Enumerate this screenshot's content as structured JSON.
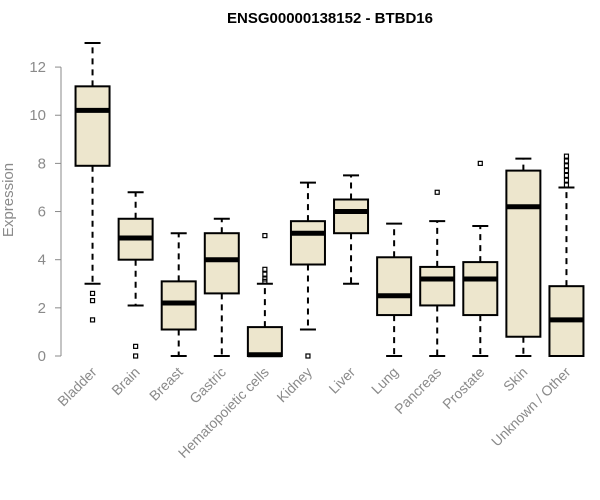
{
  "chart_data": {
    "type": "box",
    "title": "ENSG00000138152 - BTBD16",
    "xlabel": "",
    "ylabel": "Expression",
    "ylim": [
      0,
      13.2
    ],
    "yticks": [
      0,
      2,
      4,
      6,
      8,
      10,
      12
    ],
    "grid": false,
    "categories": [
      "Bladder",
      "Brain",
      "Breast",
      "Gastric",
      "Hematopoietic cells",
      "Kidney",
      "Liver",
      "Lung",
      "Pancreas",
      "Prostate",
      "Skin",
      "Unknown / Other"
    ],
    "boxes": [
      {
        "whisker_low": 3.0,
        "q1": 7.9,
        "median": 10.2,
        "q3": 11.2,
        "whisker_high": 13.0,
        "outliers": [
          2.6,
          2.3,
          1.5
        ]
      },
      {
        "whisker_low": 2.1,
        "q1": 4.0,
        "median": 4.9,
        "q3": 5.7,
        "whisker_high": 6.8,
        "outliers": [
          0.4,
          0.0
        ]
      },
      {
        "whisker_low": 0.0,
        "q1": 1.1,
        "median": 2.2,
        "q3": 3.1,
        "whisker_high": 5.1,
        "outliers": []
      },
      {
        "whisker_low": 0.0,
        "q1": 2.6,
        "median": 4.0,
        "q3": 5.1,
        "whisker_high": 5.7,
        "outliers": []
      },
      {
        "whisker_low": 0.0,
        "q1": 0.0,
        "median": 0.05,
        "q3": 1.2,
        "whisker_high": 3.0,
        "outliers": [
          5.0,
          3.6,
          3.4,
          3.2,
          3.1
        ]
      },
      {
        "whisker_low": 1.1,
        "q1": 3.8,
        "median": 5.1,
        "q3": 5.6,
        "whisker_high": 7.2,
        "outliers": [
          0.0
        ]
      },
      {
        "whisker_low": 3.0,
        "q1": 5.1,
        "median": 6.0,
        "q3": 6.5,
        "whisker_high": 7.5,
        "outliers": []
      },
      {
        "whisker_low": 0.0,
        "q1": 1.7,
        "median": 2.5,
        "q3": 4.1,
        "whisker_high": 5.5,
        "outliers": []
      },
      {
        "whisker_low": 0.0,
        "q1": 2.1,
        "median": 3.2,
        "q3": 3.7,
        "whisker_high": 5.6,
        "outliers": [
          6.8
        ]
      },
      {
        "whisker_low": 0.0,
        "q1": 1.7,
        "median": 3.2,
        "q3": 3.9,
        "whisker_high": 5.4,
        "outliers": [
          8.0
        ]
      },
      {
        "whisker_low": 0.0,
        "q1": 0.8,
        "median": 6.2,
        "q3": 7.7,
        "whisker_high": 8.2,
        "outliers": []
      },
      {
        "whisker_low": 0.0,
        "q1": 0.0,
        "median": 1.5,
        "q3": 2.9,
        "whisker_high": 7.0,
        "outliers": [
          8.3,
          8.1,
          7.9,
          7.7,
          7.5,
          7.3,
          7.1
        ]
      }
    ],
    "colors": {
      "box_fill": "#ede6cd",
      "stroke": "#000000",
      "axis": "#8a8a8a"
    }
  }
}
